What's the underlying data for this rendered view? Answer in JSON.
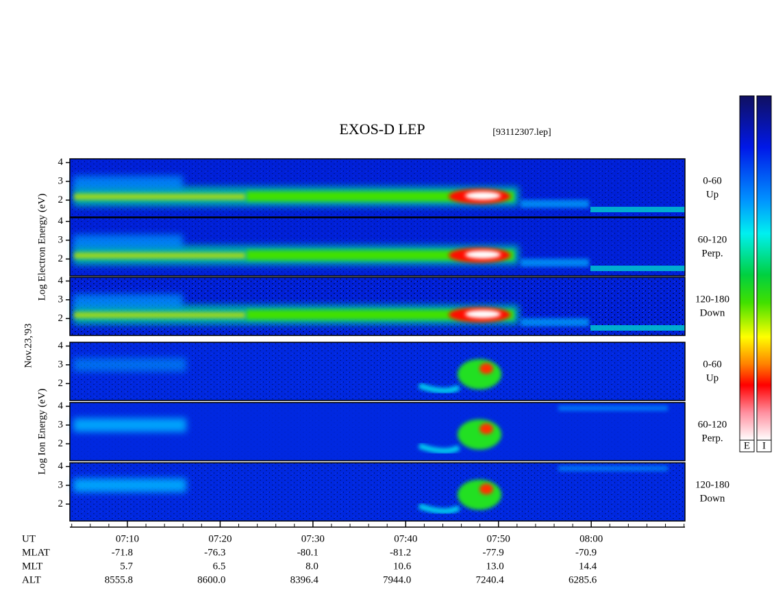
{
  "title": "EXOS-D LEP",
  "file": "[93112307.lep]",
  "date": "Nov.23,'93",
  "groups": [
    {
      "label": "Log Electron Energy (eV)",
      "ylim": [
        1.1,
        4.2
      ],
      "yticks": [
        2,
        3,
        4
      ],
      "panels": [
        {
          "angle": "0-60",
          "direction": "Up"
        },
        {
          "angle": "60-120",
          "direction": "Perp."
        },
        {
          "angle": "120-180",
          "direction": "Down"
        }
      ]
    },
    {
      "label": "Log Ion Energy (eV)",
      "ylim": [
        1.1,
        4.2
      ],
      "yticks": [
        2,
        3,
        4
      ],
      "panels": [
        {
          "angle": "0-60",
          "direction": "Up"
        },
        {
          "angle": "60-120",
          "direction": "Perp."
        },
        {
          "angle": "120-180",
          "direction": "Down"
        }
      ]
    }
  ],
  "time_axis": {
    "xlim": [
      423.8,
      490.1
    ],
    "xticks": [
      {
        "value": 430,
        "label": "07:10"
      },
      {
        "value": 440,
        "label": "07:20"
      },
      {
        "value": 450,
        "label": "07:30"
      },
      {
        "value": 460,
        "label": "07:40"
      },
      {
        "value": 470,
        "label": "07:50"
      },
      {
        "value": 480,
        "label": "08:00"
      }
    ],
    "xminor": [
      424,
      426,
      428,
      432,
      434,
      436,
      438,
      442,
      444,
      446,
      448,
      452,
      454,
      456,
      458,
      462,
      464,
      466,
      468,
      472,
      474,
      476,
      478,
      482,
      484,
      486,
      488,
      490
    ]
  },
  "ephemeris": {
    "header": "UT",
    "rows": [
      {
        "name": "MLAT",
        "values": [
          "-71.8",
          "-76.3",
          "-80.1",
          "-81.2",
          "-77.9",
          "-70.9"
        ]
      },
      {
        "name": "MLT",
        "values": [
          "5.7",
          "6.5",
          "8.0",
          "10.6",
          "13.0",
          "14.4"
        ]
      },
      {
        "name": "ALT",
        "values": [
          "8555.8",
          "8600.0",
          "8396.4",
          "7944.0",
          "7240.4",
          "6285.6"
        ]
      }
    ]
  },
  "colorbars": [
    "E",
    "I"
  ]
}
